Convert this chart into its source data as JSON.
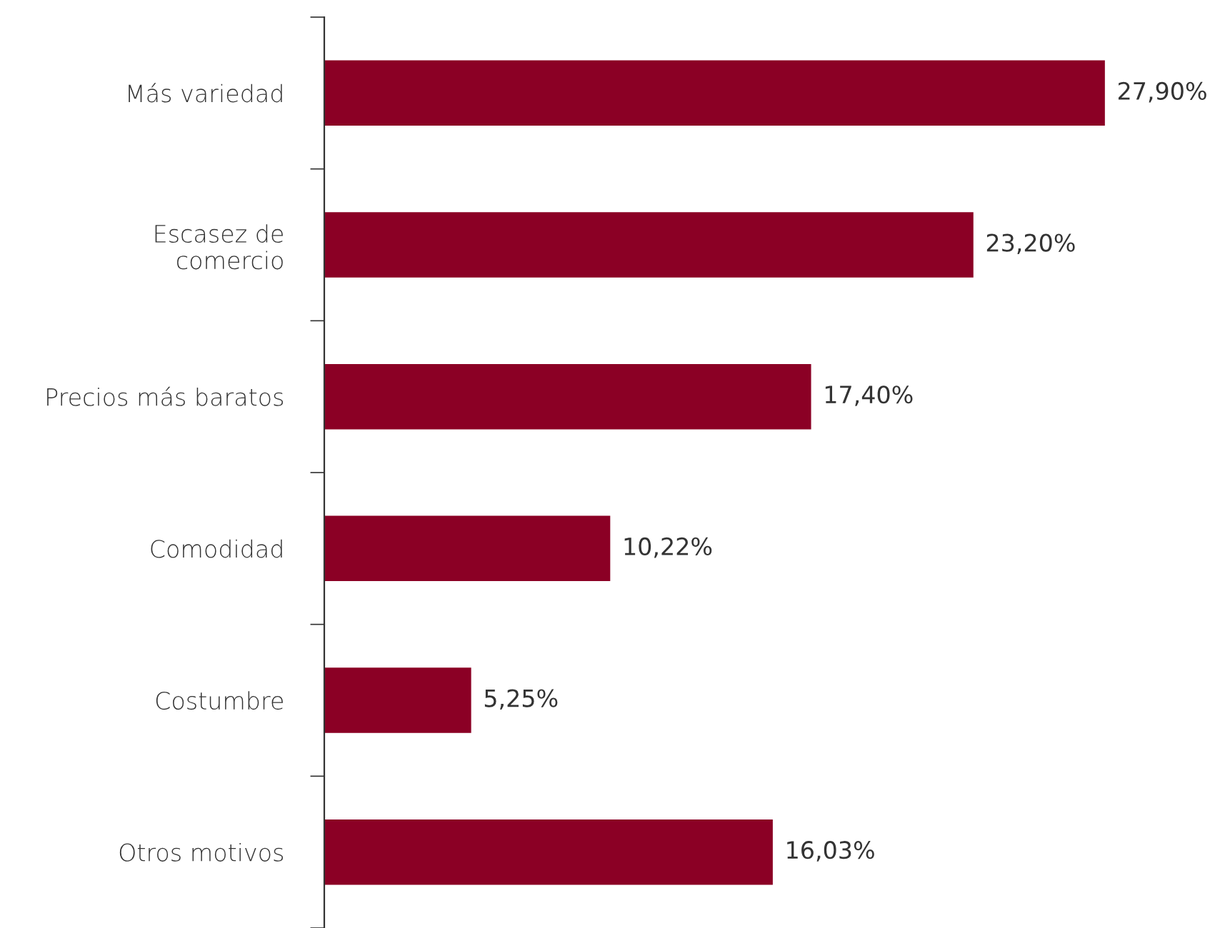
{
  "chart_data": {
    "type": "bar",
    "orientation": "horizontal",
    "categories": [
      "Más variedad",
      "Escasez de\ncomercio",
      "Precios más baratos",
      "Comodidad",
      "Costumbre",
      "Otros motivos"
    ],
    "values": [
      27.9,
      23.2,
      17.4,
      10.22,
      5.25,
      16.03
    ],
    "value_labels": [
      "27,90%",
      "23,20%",
      "17,40%",
      "10,22%",
      "5,25%",
      "16,03%"
    ],
    "color": "#8b0025",
    "grid": false,
    "legend": false
  }
}
